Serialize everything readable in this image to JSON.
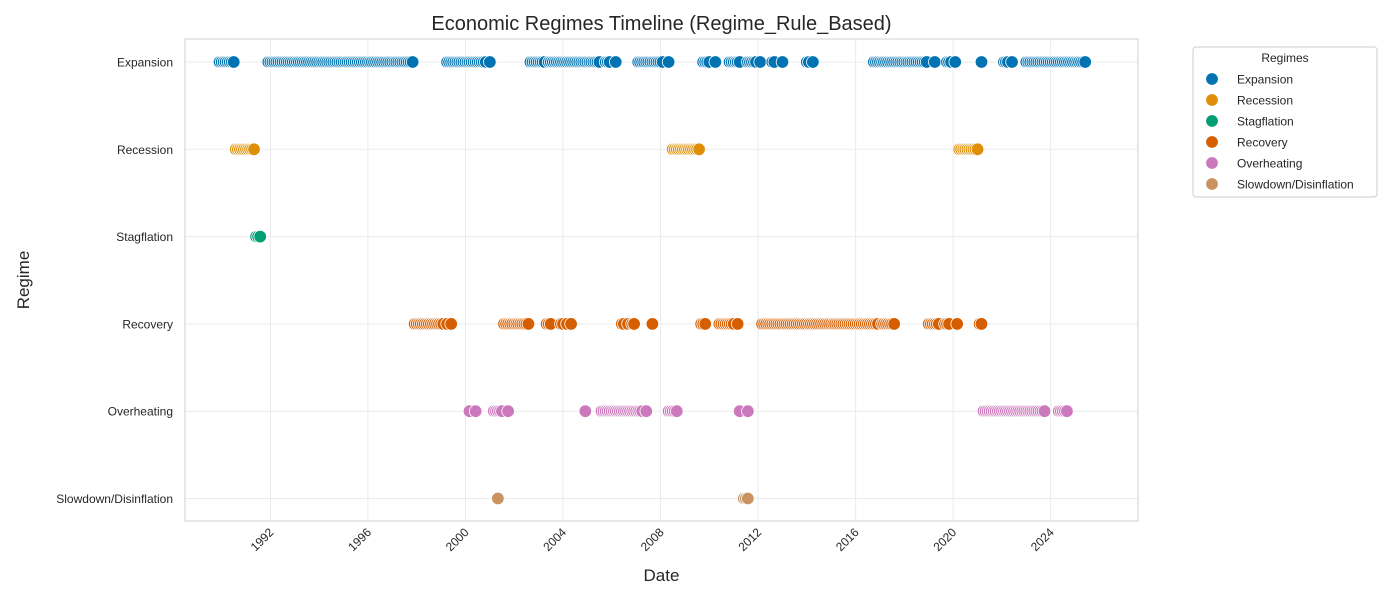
{
  "chart_data": {
    "type": "scatter",
    "title": "Economic Regimes Timeline (Regime_Rule_Based)",
    "xlabel": "Date",
    "ylabel": "Regime",
    "x_type": "date",
    "xlim": [
      "1988-07-01",
      "2027-08-01"
    ],
    "x_ticks": [
      "1992",
      "1996",
      "2000",
      "2004",
      "2008",
      "2012",
      "2016",
      "2020",
      "2024"
    ],
    "categories": [
      "Expansion",
      "Recession",
      "Stagflation",
      "Recovery",
      "Overheating",
      "Slowdown/Disinflation"
    ],
    "grid": true,
    "legend": {
      "title": "Regimes",
      "placement": "outside-top-right"
    },
    "series": [
      {
        "name": "Expansion",
        "color": "#0173b2",
        "x": [
          "1989-12",
          "1990-01",
          "1990-02",
          "1990-03",
          "1990-04",
          "1990-05",
          "1990-06",
          "1990-07",
          "1991-12",
          "1992-01",
          "1992-02",
          "1992-03",
          "1992-04",
          "1992-05",
          "1992-06",
          "1992-07",
          "1992-08",
          "1992-09",
          "1992-10",
          "1992-11",
          "1992-12",
          "1993-01",
          "1993-02",
          "1993-03",
          "1993-04",
          "1993-05",
          "1993-06",
          "1993-07",
          "1993-08",
          "1993-09",
          "1993-10",
          "1993-11",
          "1993-12",
          "1994-01",
          "1994-02",
          "1994-03",
          "1994-04",
          "1994-05",
          "1994-06",
          "1994-07",
          "1994-08",
          "1994-09",
          "1994-10",
          "1994-11",
          "1994-12",
          "1995-01",
          "1995-02",
          "1995-03",
          "1995-04",
          "1995-05",
          "1995-06",
          "1995-07",
          "1995-08",
          "1995-09",
          "1995-10",
          "1995-11",
          "1995-12",
          "1996-01",
          "1996-02",
          "1996-03",
          "1996-04",
          "1996-05",
          "1996-06",
          "1996-07",
          "1996-08",
          "1996-09",
          "1996-10",
          "1996-11",
          "1996-12",
          "1997-01",
          "1997-02",
          "1997-03",
          "1997-04",
          "1997-05",
          "1997-06",
          "1997-07",
          "1997-08",
          "1997-09",
          "1997-10",
          "1997-11",
          "1999-04",
          "1999-05",
          "1999-06",
          "1999-07",
          "1999-08",
          "1999-09",
          "1999-10",
          "1999-11",
          "1999-12",
          "2000-01",
          "2000-02",
          "2000-03",
          "2000-04",
          "2000-05",
          "2000-06",
          "2000-07",
          "2000-08",
          "2000-09",
          "2000-10",
          "2000-11",
          "2001-01",
          "2002-09",
          "2002-10",
          "2002-11",
          "2002-12",
          "2003-01",
          "2003-02",
          "2003-03",
          "2003-04",
          "2003-06",
          "2003-07",
          "2003-08",
          "2003-09",
          "2003-10",
          "2003-11",
          "2003-12",
          "2004-01",
          "2004-02",
          "2004-03",
          "2004-04",
          "2004-05",
          "2004-06",
          "2004-07",
          "2004-08",
          "2004-09",
          "2004-10",
          "2004-11",
          "2004-12",
          "2005-01",
          "2005-02",
          "2005-03",
          "2005-04",
          "2005-05",
          "2005-06",
          "2005-07",
          "2005-10",
          "2005-11",
          "2005-12",
          "2006-03",
          "2007-02",
          "2007-03",
          "2007-04",
          "2007-05",
          "2007-06",
          "2007-07",
          "2007-08",
          "2007-09",
          "2007-10",
          "2007-11",
          "2007-12",
          "2008-01",
          "2008-02",
          "2008-05",
          "2009-10",
          "2009-11",
          "2009-12",
          "2010-01",
          "2010-04",
          "2010-11",
          "2010-12",
          "2011-01",
          "2011-02",
          "2011-03",
          "2011-04",
          "2011-08",
          "2011-09",
          "2011-10",
          "2011-11",
          "2011-12",
          "2012-02",
          "2012-08",
          "2012-09",
          "2013-01",
          "2014-01",
          "2014-02",
          "2014-04",
          "2016-10",
          "2016-11",
          "2016-12",
          "2017-01",
          "2017-02",
          "2017-03",
          "2017-04",
          "2017-05",
          "2017-06",
          "2017-07",
          "2017-08",
          "2017-09",
          "2017-10",
          "2017-11",
          "2017-12",
          "2018-01",
          "2018-02",
          "2018-03",
          "2018-04",
          "2018-05",
          "2018-06",
          "2018-07",
          "2018-08",
          "2018-09",
          "2018-10",
          "2018-11",
          "2018-12",
          "2019-04",
          "2019-10",
          "2019-11",
          "2019-12",
          "2020-02",
          "2021-03",
          "2022-02",
          "2022-03",
          "2022-04",
          "2022-06",
          "2023-01",
          "2023-02",
          "2023-03",
          "2023-04",
          "2023-05",
          "2023-06",
          "2023-07",
          "2023-08",
          "2023-09",
          "2023-10",
          "2023-11",
          "2023-12",
          "2024-01",
          "2024-02",
          "2024-03",
          "2024-04",
          "2024-05",
          "2024-06",
          "2024-07",
          "2024-08",
          "2024-09",
          "2024-10",
          "2024-11",
          "2024-12",
          "2025-01",
          "2025-02",
          "2025-03",
          "2025-04",
          "2025-05",
          "2025-06"
        ]
      },
      {
        "name": "Recession",
        "color": "#de8f05",
        "x": [
          "1990-08",
          "1990-09",
          "1990-10",
          "1990-11",
          "1990-12",
          "1991-01",
          "1991-02",
          "1991-03",
          "1991-04",
          "1991-05",
          "2008-07",
          "2008-08",
          "2008-09",
          "2008-10",
          "2008-11",
          "2008-12",
          "2009-01",
          "2009-02",
          "2009-03",
          "2009-04",
          "2009-05",
          "2009-06",
          "2009-07",
          "2009-08",
          "2020-04",
          "2020-05",
          "2020-06",
          "2020-07",
          "2020-08",
          "2020-09",
          "2020-10",
          "2020-11",
          "2020-12",
          "2021-01"
        ]
      },
      {
        "name": "Stagflation",
        "color": "#029e73",
        "x": [
          "1991-06",
          "1991-07",
          "1991-08"
        ]
      },
      {
        "name": "Recovery",
        "color": "#d55e00",
        "x": [
          "1997-12",
          "1998-01",
          "1998-02",
          "1998-03",
          "1998-04",
          "1998-05",
          "1998-06",
          "1998-07",
          "1998-08",
          "1998-09",
          "1998-10",
          "1998-11",
          "1998-12",
          "1999-01",
          "1999-02",
          "1999-04",
          "1999-06",
          "2001-08",
          "2001-09",
          "2001-10",
          "2001-11",
          "2001-12",
          "2002-01",
          "2002-02",
          "2002-03",
          "2002-04",
          "2002-05",
          "2002-06",
          "2002-07",
          "2002-08",
          "2003-05",
          "2003-06",
          "2003-07",
          "2003-12",
          "2004-01",
          "2004-03",
          "2004-05",
          "2006-06",
          "2006-07",
          "2006-09",
          "2006-11",
          "2006-12",
          "2007-09",
          "2009-09",
          "2009-10",
          "2009-11",
          "2010-06",
          "2010-07",
          "2010-08",
          "2010-09",
          "2010-10",
          "2010-11",
          "2010-12",
          "2011-01",
          "2011-03",
          "2012-03",
          "2012-04",
          "2012-05",
          "2012-06",
          "2012-07",
          "2012-08",
          "2012-09",
          "2012-10",
          "2012-11",
          "2012-12",
          "2013-01",
          "2013-02",
          "2013-03",
          "2013-04",
          "2013-05",
          "2013-06",
          "2013-07",
          "2013-08",
          "2013-09",
          "2013-10",
          "2013-11",
          "2013-12",
          "2014-01",
          "2014-02",
          "2014-03",
          "2014-04",
          "2014-05",
          "2014-06",
          "2014-07",
          "2014-08",
          "2014-09",
          "2014-10",
          "2014-11",
          "2014-12",
          "2015-01",
          "2015-02",
          "2015-03",
          "2015-04",
          "2015-05",
          "2015-06",
          "2015-07",
          "2015-08",
          "2015-09",
          "2015-10",
          "2015-11",
          "2015-12",
          "2016-01",
          "2016-02",
          "2016-03",
          "2016-04",
          "2016-05",
          "2016-06",
          "2016-07",
          "2016-08",
          "2016-09",
          "2016-10",
          "2016-11",
          "2016-12",
          "2017-02",
          "2017-03",
          "2017-04",
          "2017-05",
          "2017-06",
          "2017-07",
          "2017-08",
          "2019-01",
          "2019-02",
          "2019-03",
          "2019-04",
          "2019-05",
          "2019-06",
          "2019-09",
          "2019-10",
          "2019-11",
          "2020-03",
          "2021-02",
          "2021-03"
        ]
      },
      {
        "name": "Overheating",
        "color": "#cc78bc",
        "x": [
          "2000-03",
          "2000-06",
          "2001-03",
          "2001-04",
          "2001-05",
          "2001-06",
          "2001-07",
          "2001-10",
          "2004-12",
          "2005-08",
          "2005-09",
          "2005-10",
          "2005-11",
          "2005-12",
          "2006-01",
          "2006-02",
          "2006-03",
          "2006-04",
          "2006-05",
          "2006-06",
          "2006-07",
          "2006-08",
          "2006-09",
          "2006-10",
          "2006-11",
          "2006-12",
          "2007-01",
          "2007-02",
          "2007-03",
          "2007-04",
          "2007-06",
          "2008-05",
          "2008-06",
          "2008-07",
          "2008-08",
          "2008-09",
          "2011-04",
          "2011-08",
          "2021-04",
          "2021-05",
          "2021-06",
          "2021-07",
          "2021-08",
          "2021-09",
          "2021-10",
          "2021-11",
          "2021-12",
          "2022-01",
          "2022-02",
          "2022-03",
          "2022-04",
          "2022-05",
          "2022-06",
          "2022-07",
          "2022-08",
          "2022-09",
          "2022-10",
          "2022-11",
          "2022-12",
          "2023-01",
          "2023-02",
          "2023-03",
          "2023-04",
          "2023-05",
          "2023-06",
          "2023-07",
          "2023-08",
          "2023-09",
          "2023-10",
          "2024-05",
          "2024-06",
          "2024-07",
          "2024-08",
          "2024-09"
        ]
      },
      {
        "name": "Slowdown/Disinflation",
        "color": "#ca9161",
        "x": [
          "2001-05",
          "2011-06",
          "2011-07",
          "2011-08"
        ]
      }
    ]
  }
}
